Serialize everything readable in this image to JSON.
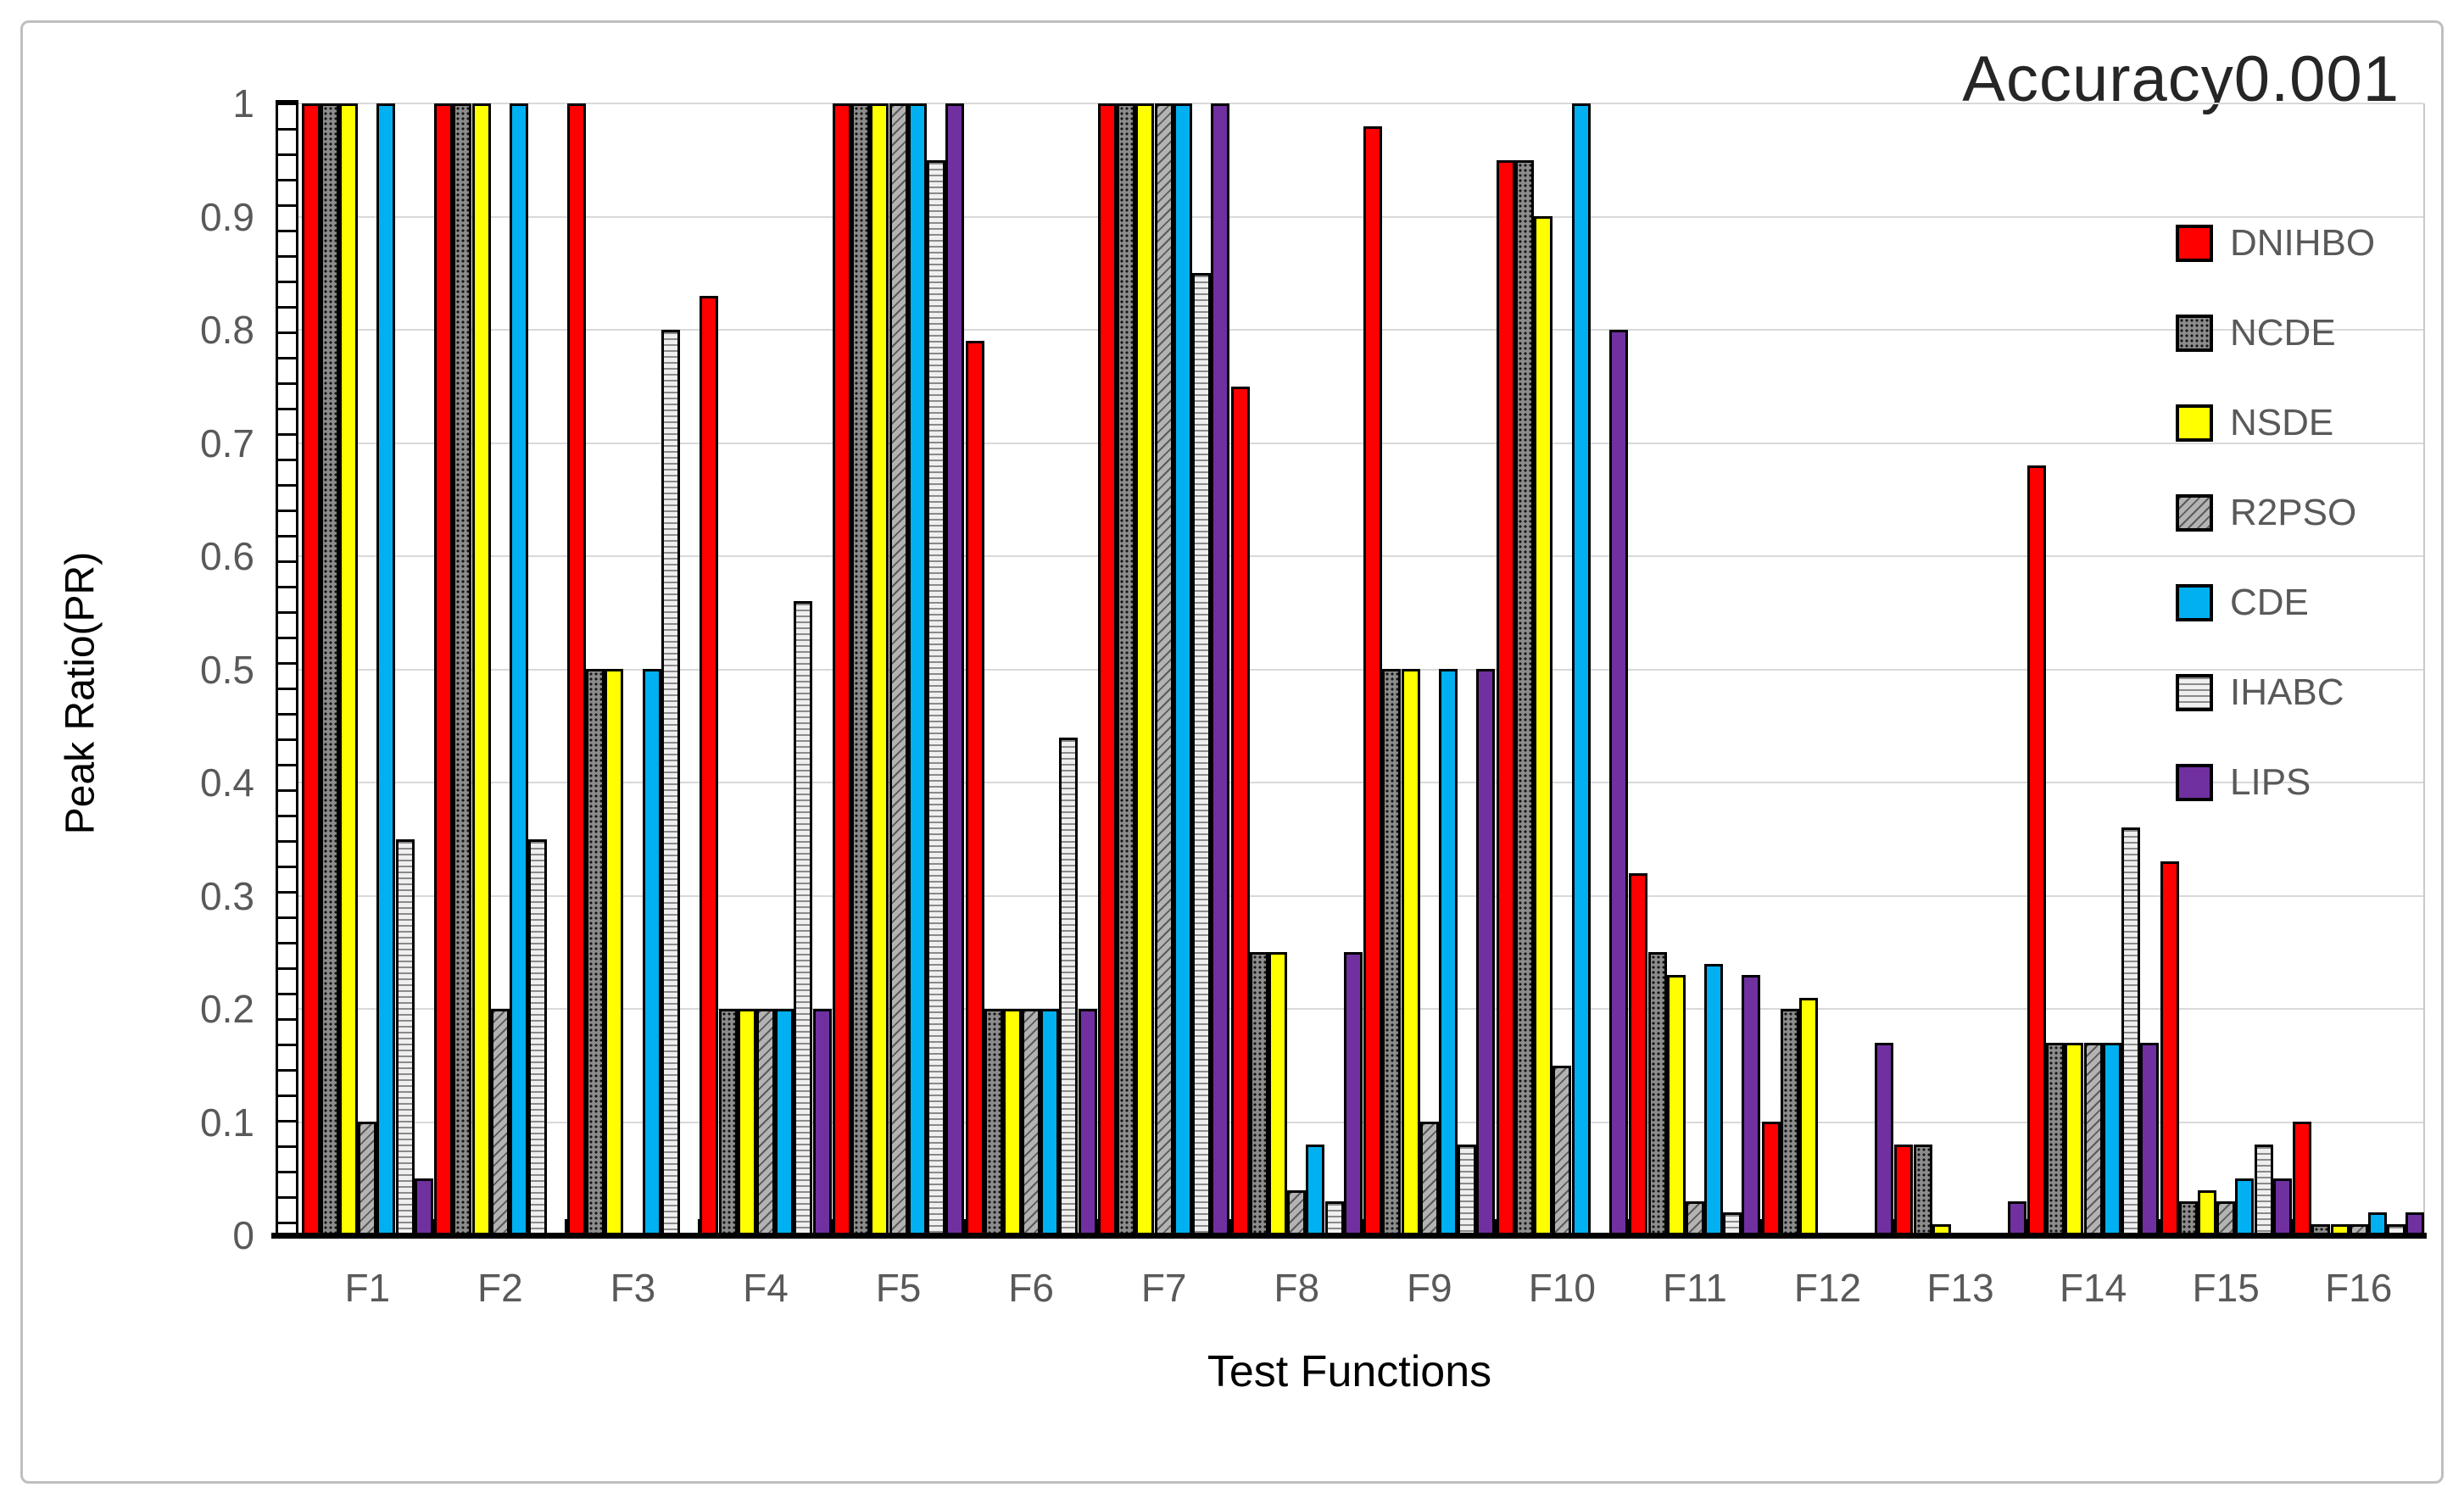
{
  "chart_data": {
    "type": "bar",
    "title": "Accuracy0.001",
    "xlabel": "Test Functions",
    "ylabel": "Peak Ratio(PR)",
    "ylim": [
      0,
      1
    ],
    "grid": true,
    "legend_position": "right",
    "y_ticks": [
      "1",
      "0.9",
      "0.8",
      "0.7",
      "0.6",
      "0.5",
      "0.4",
      "0.3",
      "0.2",
      "0.1",
      "0"
    ],
    "categories": [
      "F1",
      "F2",
      "F3",
      "F4",
      "F5",
      "F6",
      "F7",
      "F8",
      "F9",
      "F10",
      "F11",
      "F12",
      "F13",
      "F14",
      "F15",
      "F16"
    ],
    "series": [
      {
        "name": "DNIHBO",
        "color": "#FF0000",
        "pattern": "solid",
        "values": [
          1,
          1,
          1,
          0.83,
          1,
          0.79,
          1,
          0.75,
          0.98,
          0.95,
          0.32,
          0.1,
          0.08,
          0.68,
          0.33,
          0.1
        ]
      },
      {
        "name": "NCDE",
        "color": "#8C8C8C",
        "pattern": "dots",
        "values": [
          1,
          1,
          0.5,
          0.2,
          1,
          0.2,
          1,
          0.25,
          0.5,
          0.95,
          0.25,
          0.2,
          0.08,
          0.17,
          0.03,
          0.01
        ]
      },
      {
        "name": "NSDE",
        "color": "#FFFF00",
        "pattern": "solid",
        "values": [
          1,
          1,
          0.5,
          0.2,
          1,
          0.2,
          1,
          0.25,
          0.5,
          0.9,
          0.23,
          0.21,
          0.01,
          0.17,
          0.04,
          0.01
        ]
      },
      {
        "name": "R2PSO",
        "color": "#B3B3B3",
        "pattern": "diagonal",
        "values": [
          0.1,
          0.2,
          0,
          0.2,
          1,
          0.2,
          1,
          0.04,
          0.1,
          0.15,
          0.03,
          0,
          0,
          0.17,
          0.03,
          0.01
        ]
      },
      {
        "name": "CDE",
        "color": "#00B0F0",
        "pattern": "solid",
        "values": [
          1,
          1,
          0.5,
          0.2,
          1,
          0.2,
          1,
          0.08,
          0.5,
          1,
          0.24,
          0,
          0,
          0.17,
          0.05,
          0.02
        ]
      },
      {
        "name": "IHABC",
        "color": "#EFEFEF",
        "pattern": "hstripes",
        "values": [
          0.35,
          0.35,
          0.8,
          0.56,
          0.95,
          0.44,
          0.85,
          0.03,
          0.08,
          0,
          0.02,
          0,
          0,
          0.36,
          0.08,
          0.01
        ]
      },
      {
        "name": "LIPS",
        "color": "#7030A0",
        "pattern": "solid",
        "values": [
          0.05,
          0,
          0,
          0.2,
          1,
          0.2,
          1,
          0.25,
          0.5,
          0.8,
          0.23,
          0.17,
          0.03,
          0.17,
          0.05,
          0.02
        ]
      }
    ]
  },
  "colors": {
    "gridline": "#D9D9D9",
    "axis": "#000000",
    "tick_label": "#595959",
    "title_text": "#262626",
    "outer_border": "#BFBFBF"
  }
}
